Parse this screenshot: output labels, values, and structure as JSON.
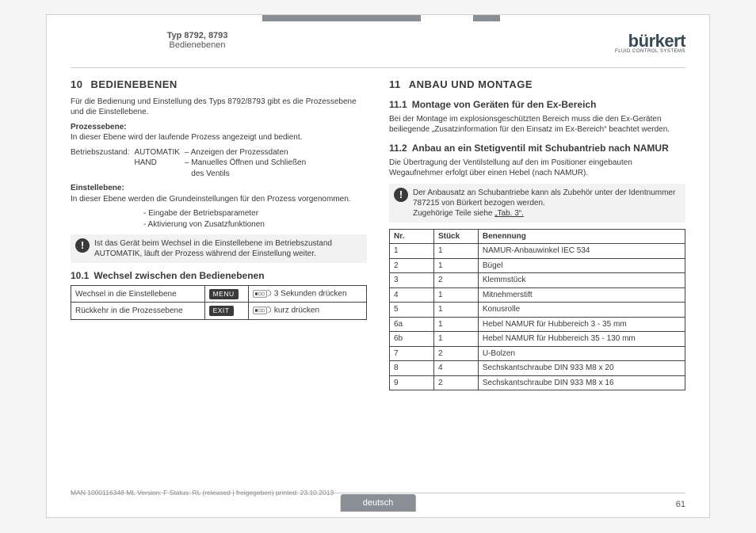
{
  "header": {
    "typ": "Typ 8792, 8793",
    "section": "Bedienebenen",
    "logo_name": "bürkert",
    "logo_subline": "FLUID CONTROL SYSTEMS"
  },
  "left": {
    "h2_num": "10",
    "h2_title": "BEDIENEBENEN",
    "intro": "Für die Bedienung und Einstellung des Typs 8792/8793 gibt es die Prozessebene und die Einstellebene.",
    "prozess_label": "Prozessebene:",
    "prozess_text": "In dieser Ebene wird der laufende Prozess angezeigt und bedient.",
    "betriebs_label": "Betriebszustand:",
    "auto": "AUTOMATIK",
    "auto_desc": "– Anzeigen der Prozessdaten",
    "hand": "HAND",
    "hand_desc1": "– Manuelles Öffnen und Schließen",
    "hand_desc2": "des Ventils",
    "einstell_label": "Einstellebene:",
    "einstell_text": "In dieser Ebene werden die Grundeinstellungen für den Prozess vorgenommen.",
    "einstell_item1": "- Eingabe der Betriebsparameter",
    "einstell_item2": "- Aktivierung von Zusatzfunktionen",
    "note": "Ist das Gerät beim Wechsel in die Einstellebene im Betriebszustand AUTOMATIK, läuft der Prozess während der Einstellung weiter.",
    "h3_num": "10.1",
    "h3_title": "Wechsel zwischen den Bedienebenen",
    "switch_table": {
      "rows": [
        {
          "label": "Wechsel in die Einstellebene",
          "button": "MENU",
          "action": "3 Sekunden drücken"
        },
        {
          "label": "Rückkehr in die Prozessebene",
          "button": "EXIT",
          "action": "kurz drücken"
        }
      ]
    }
  },
  "right": {
    "h2_num": "11",
    "h2_title": "ANBAU UND MONTAGE",
    "h3a_num": "11.1",
    "h3a_title": "Montage von Geräten für den Ex-Bereich",
    "p1": "Bei der Montage im explosionsgeschützten Bereich muss die den Ex-Geräten beiliegende „Zusatzinformation für den Einsatz im Ex-Bereich“ beachtet werden.",
    "h3b_num": "11.2",
    "h3b_title": "Anbau an ein Stetigventil mit Schubantrieb nach NAMUR",
    "p2": "Die Übertragung der Ventilstellung auf den im Positioner eingebauten Wegaufnehmer erfolgt über einen Hebel (nach NAMUR).",
    "note_l1": "Der Anbausatz an Schubantriebe kann als Zubehör unter der Identnummer 787215 von Bürkert bezogen werden.",
    "note_l2a": "Zugehörige Teile siehe ",
    "note_l2b": "„Tab. 3“.",
    "parts_table": {
      "headers": [
        "Nr.",
        "Stück",
        "Benennung"
      ],
      "rows": [
        [
          "1",
          "1",
          "NAMUR-Anbauwinkel IEC 534"
        ],
        [
          "2",
          "1",
          "Bügel"
        ],
        [
          "3",
          "2",
          "Klemmstück"
        ],
        [
          "4",
          "1",
          "Mitnehmerstift"
        ],
        [
          "5",
          "1",
          "Konusrolle"
        ],
        [
          "6a",
          "1",
          "Hebel NAMUR für Hubbereich 3 - 35 mm"
        ],
        [
          "6b",
          "1",
          "Hebel NAMUR für Hubbereich 35 - 130 mm"
        ],
        [
          "7",
          "2",
          "U-Bolzen"
        ],
        [
          "8",
          "4",
          "Sechskantschraube DIN 933 M8 x 20"
        ],
        [
          "9",
          "2",
          "Sechskantschraube DIN 933 M8 x 16"
        ]
      ]
    }
  },
  "footer": {
    "meta": "MAN 1000116348 ML Version: F Status: RL (released | freigegeben) printed: 23.10.2013",
    "lang": "deutsch",
    "page": "61"
  }
}
